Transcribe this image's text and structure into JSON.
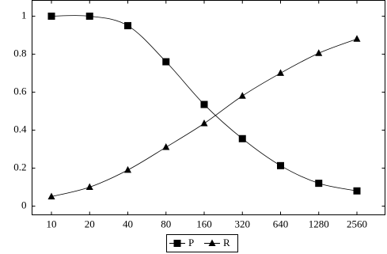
{
  "chart_data": {
    "type": "line",
    "categories": [
      "10",
      "20",
      "40",
      "80",
      "160",
      "320",
      "640",
      "1280",
      "2560"
    ],
    "series": [
      {
        "name": "P",
        "color": "#000000",
        "marker": "square",
        "values": [
          1,
          1,
          0.95,
          0.76,
          0.535,
          0.355,
          0.213,
          0.12,
          0.08
        ]
      },
      {
        "name": "R",
        "color": "#000000",
        "marker": "triangle",
        "values": [
          0.05,
          0.1,
          0.19,
          0.31,
          0.435,
          0.58,
          0.7,
          0.805,
          0.88
        ]
      }
    ],
    "ylim": [
      -0.046,
      1.083
    ],
    "yticks": [
      0,
      0.2,
      0.4,
      0.6,
      0.8,
      1
    ],
    "smooth": true,
    "legend": "bottom"
  }
}
